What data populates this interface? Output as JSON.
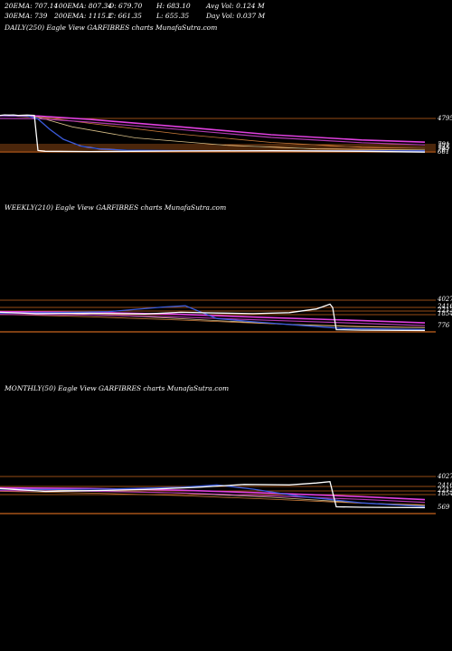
{
  "stats": [
    {
      "key": "ema20",
      "text": "20EMA: 707.14"
    },
    {
      "key": "ema100",
      "text": "100EMA: 807.34"
    },
    {
      "key": "open",
      "text": "O: 679.70"
    },
    {
      "key": "high",
      "text": "H: 683.10"
    },
    {
      "key": "avgvol",
      "text": "Avg Vol: 0.124  M"
    },
    {
      "key": "ema30",
      "text": "30EMA: 739"
    },
    {
      "key": "ema200",
      "text": "200EMA: 1115.2"
    },
    {
      "key": "close",
      "text": "C: 661.35"
    },
    {
      "key": "low",
      "text": "L: 655.35"
    },
    {
      "key": "dayvol",
      "text": "Day Vol: 0.037  M"
    }
  ],
  "colors": {
    "background": "#000000",
    "price": "#ffffff",
    "ema20": "#3b5bdb",
    "ema_short": "#d9c089",
    "ema_mid": "#c97a3a",
    "ema_long": "#e040e0",
    "ema_long2": "#b03ab0",
    "level": "#c8641e"
  },
  "chart_data": [
    {
      "type": "line",
      "title": "DAILY(250) Eagle   View  GARFIBRES charts MunafaSutra.com",
      "level_labels": [
        "4795",
        "791",
        "777",
        "745",
        "707",
        "661"
      ],
      "y_scale": "log",
      "ylim": [
        500,
        6000
      ],
      "series": [
        {
          "key": "price",
          "x": [
            0,
            5,
            10,
            15,
            20,
            30,
            38,
            42,
            50,
            100,
            200,
            300,
            400,
            470
          ],
          "values": [
            4600,
            4700,
            4650,
            4700,
            4600,
            4650,
            4600,
            720,
            690,
            680,
            700,
            710,
            690,
            661
          ]
        },
        {
          "key": "ema20",
          "x": [
            0,
            30,
            42,
            55,
            70,
            90,
            110,
            140,
            200,
            300,
            470
          ],
          "values": [
            4600,
            4500,
            3800,
            2200,
            1300,
            900,
            780,
            730,
            710,
            705,
            707
          ]
        },
        {
          "key": "ema_short",
          "x": [
            0,
            42,
            80,
            150,
            250,
            350,
            470
          ],
          "values": [
            4500,
            4200,
            2500,
            1400,
            950,
            780,
            739
          ]
        },
        {
          "key": "ema_mid",
          "x": [
            0,
            42,
            100,
            200,
            300,
            400,
            470
          ],
          "values": [
            4500,
            4300,
            3000,
            1700,
            1100,
            850,
            807
          ]
        },
        {
          "key": "ema_long",
          "x": [
            0,
            42,
            100,
            200,
            300,
            400,
            470
          ],
          "values": [
            4500,
            4450,
            3700,
            2500,
            1650,
            1250,
            1115
          ]
        }
      ]
    },
    {
      "type": "line",
      "title": "WEEKLY(210) Eagle   View  GARFIBRES charts MunafaSutra.com",
      "level_labels": [
        "4027",
        "2416",
        "2212",
        "1854",
        "776"
      ],
      "y_scale": "log",
      "ylim": [
        500,
        6000
      ],
      "series": [
        {
          "key": "price",
          "x": [
            0,
            40,
            100,
            160,
            200,
            240,
            280,
            320,
            350,
            365,
            368,
            372,
            400,
            470
          ],
          "values": [
            2300,
            2100,
            2150,
            2050,
            2300,
            2200,
            2100,
            2250,
            2900,
            4027,
            3200,
            700,
            680,
            661
          ]
        },
        {
          "key": "ema20",
          "x": [
            0,
            60,
            120,
            180,
            205,
            240,
            280,
            330,
            380,
            470
          ],
          "values": [
            2200,
            2250,
            2400,
            3300,
            3600,
            1500,
            1200,
            950,
            760,
            707
          ]
        },
        {
          "key": "ema_short",
          "x": [
            0,
            80,
            160,
            240,
            320,
            400,
            470
          ],
          "values": [
            2300,
            2100,
            1700,
            1300,
            1000,
            850,
            800
          ]
        },
        {
          "key": "ema_mid",
          "x": [
            0,
            100,
            200,
            300,
            400,
            470
          ],
          "values": [
            2000,
            1700,
            1350,
            1050,
            880,
            810
          ]
        },
        {
          "key": "ema_long",
          "x": [
            0,
            100,
            200,
            300,
            400,
            470
          ],
          "values": [
            2400,
            2300,
            2000,
            1600,
            1300,
            1115
          ]
        }
      ]
    },
    {
      "type": "line",
      "title": "MONTHLY(50) Eagle   View  GARFIBRES charts MunafaSutra.com",
      "level_labels": [
        "4027",
        "2416",
        "2212",
        "1854",
        "569"
      ],
      "y_scale": "log",
      "ylim": [
        400,
        6000
      ],
      "series": [
        {
          "key": "price",
          "x": [
            0,
            50,
            100,
            160,
            220,
            270,
            320,
            350,
            365,
            372,
            400,
            470
          ],
          "values": [
            2300,
            1900,
            2000,
            2150,
            2500,
            3000,
            2900,
            3300,
            3600,
            700,
            680,
            661
          ]
        },
        {
          "key": "ema20",
          "x": [
            0,
            60,
            130,
            200,
            240,
            280,
            330,
            400,
            470
          ],
          "values": [
            2200,
            2150,
            2250,
            2500,
            2900,
            2200,
            1400,
            900,
            707
          ]
        },
        {
          "key": "ema_short",
          "x": [
            0,
            100,
            200,
            300,
            400,
            470
          ],
          "values": [
            2200,
            2000,
            1700,
            1300,
            900,
            750
          ]
        },
        {
          "key": "ema_mid",
          "x": [
            0,
            100,
            200,
            300,
            400,
            470
          ],
          "values": [
            1900,
            1700,
            1450,
            1150,
            880,
            800
          ]
        },
        {
          "key": "ema_long",
          "x": [
            0,
            100,
            200,
            300,
            400,
            470
          ],
          "values": [
            2400,
            2300,
            2050,
            1700,
            1350,
            1115
          ]
        }
      ]
    }
  ]
}
